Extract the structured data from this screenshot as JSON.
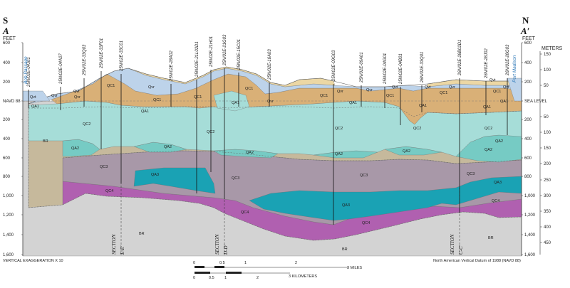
{
  "section": {
    "left_letter": "S",
    "left_id": "A",
    "right_letter": "N",
    "right_id": "A′"
  },
  "axes": {
    "left_unit": "FEET",
    "right_unit_feet": "FEET",
    "right_unit_meters": "METERS",
    "left_ticks": [
      "600",
      "400",
      "200",
      "NAVD 88",
      "200",
      "400",
      "600",
      "800",
      "1,000",
      "1,200",
      "1,400",
      "1,600"
    ],
    "right_feet_ticks": [
      "600",
      "400",
      "200",
      "SEA LEVEL",
      "200",
      "400",
      "600",
      "800",
      "1,000",
      "1,200",
      "1,400",
      "1,600"
    ],
    "right_meter_ticks": [
      "150",
      "100",
      "50",
      "50",
      "100",
      "150",
      "200",
      "250",
      "300",
      "350",
      "400",
      "450"
    ]
  },
  "wells": [
    "25N/02E-04J01",
    "25N/02E-04A07",
    "25N/02E-33Q03",
    "25N/02E-33F01",
    "25N/02E-33C01",
    "25N/02E-28A02",
    "25N/02E-21L02D1",
    "25N/02E-21H01",
    "25N/02E-21G03",
    "25N/02E-15C01",
    "25N/02E-16A03",
    "25N/02E-09G03",
    "25N/02E-09A01",
    "25N/02E-04G01",
    "25N/02E-04B01",
    "26N/02E-33Q01",
    "26N/02E-28B02D1",
    "26N/02E-28J02",
    "26N/02E-28G03"
  ],
  "places": [
    "Bob Passage",
    "Port Madison"
  ],
  "units": [
    "Qvt",
    "Qvr",
    "Qvt",
    "Qvr",
    "QC1",
    "QC1",
    "QC1",
    "Qvr",
    "QC1",
    "Qvr",
    "QA1",
    "QA1",
    "QA1",
    "QA1",
    "Qvr",
    "QC1",
    "QC1",
    "Qvr",
    "Qvt",
    "Qvt",
    "Qvr",
    "Qvt",
    "Qvt",
    "QA1",
    "QA1",
    "QC1",
    "QC1",
    "QA1",
    "QC2",
    "QC2",
    "QC2",
    "QC2",
    "QC2",
    "QA2",
    "QA2",
    "QA2",
    "QA2",
    "QA2",
    "QA2",
    "QA2",
    "QC3",
    "QC3",
    "QC3",
    "QC3",
    "QA3",
    "QA3",
    "QA3",
    "QC4",
    "QC4",
    "QC4",
    "QC4",
    "BR",
    "BR",
    "BR",
    "BR"
  ],
  "sections": [
    "SECTION",
    "E-E′",
    "SECTION",
    "D-D′",
    "SECTION",
    "C-C′"
  ],
  "footer": {
    "exaggeration": "VERTICAL EXAGGERATION X 10",
    "datum": "North American Vertical Datum of 1988 (NAVD 88)",
    "miles_label": "3 MILES",
    "km_label": "3 KILOMETERS",
    "miles_ticks": [
      "0",
      "0.5",
      "1",
      "2"
    ],
    "km_ticks": [
      "0",
      "0.5",
      "1",
      "2"
    ]
  },
  "colors": {
    "bedrock": "#d3d3d3",
    "qc4": "#b060b0",
    "qa3": "#1aa2b4",
    "qc3": "#a898a8",
    "qa2": "#76cbc4",
    "qc2": "#c6b99c",
    "qa1": "#a6ddd8",
    "qc1": "#d9b077",
    "qvt": "#ecd7a4",
    "qvr": "#bdd3ea"
  }
}
